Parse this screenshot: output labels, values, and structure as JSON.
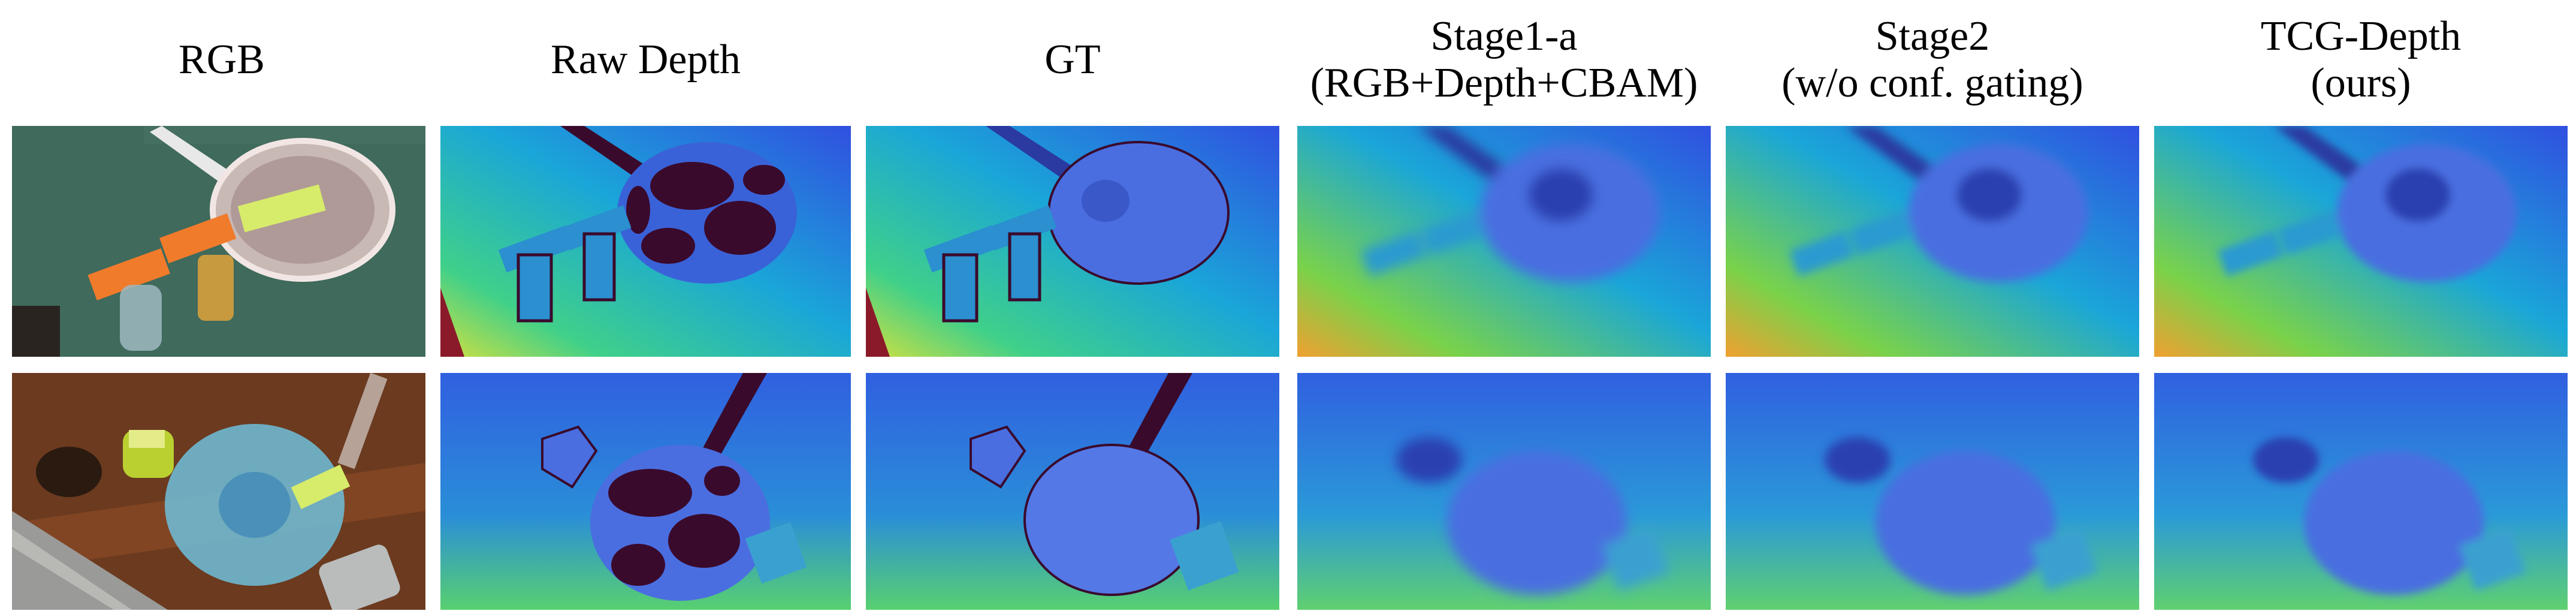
{
  "columns": [
    {
      "id": "rgb",
      "lines": [
        "RGB"
      ]
    },
    {
      "id": "raw-depth",
      "lines": [
        "Raw Depth"
      ]
    },
    {
      "id": "gt",
      "lines": [
        "GT"
      ]
    },
    {
      "id": "stage1a",
      "lines": [
        "Stage1-a",
        "(RGB+Depth+CBAM)"
      ]
    },
    {
      "id": "stage2",
      "lines": [
        "Stage2",
        "(w/o conf. gating)"
      ]
    },
    {
      "id": "tcg-depth",
      "lines": [
        "TCG-Depth",
        "(ours)"
      ]
    }
  ],
  "rows": [
    {
      "id": "row-1",
      "subject": "strainer-scene"
    },
    {
      "id": "row-2",
      "subject": "bowl-scene"
    }
  ],
  "colors": {
    "rgb_table_green": "#3f6a5c",
    "rgb_wood": "#6b3a1f",
    "depth_far": "#3050e0",
    "depth_mid": "#1aa6d8",
    "depth_near": "#7ad24a",
    "depth_closest": "#f0a030",
    "depth_hole": "#3a0a2c"
  }
}
